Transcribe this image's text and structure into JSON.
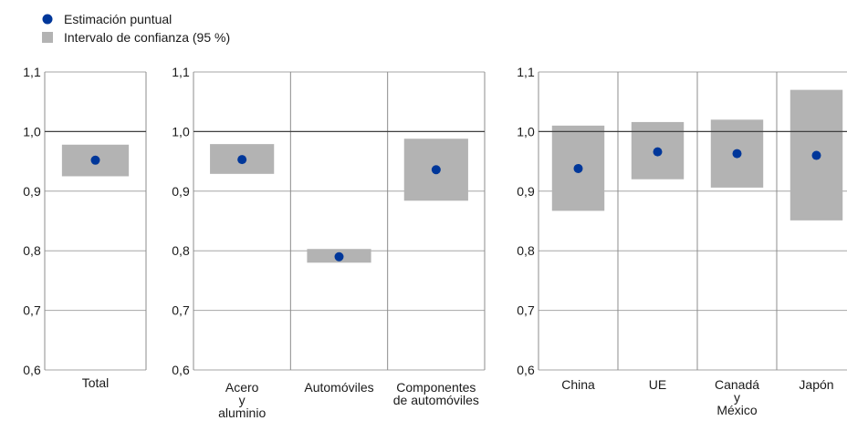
{
  "legend": {
    "point_label": "Estimación puntual",
    "interval_label": "Intervalo de confianza (95 %)"
  },
  "colors": {
    "point": "#00379a",
    "interval": "#b3b3b3",
    "grid": "#a6a6a6",
    "reference_line": "#404040",
    "frame": "#8c8c8c"
  },
  "chart_data": [
    {
      "type": "scatter",
      "subtype": "point estimate with confidence interval",
      "title": "",
      "xlabel": "",
      "ylabel": "",
      "ylim": [
        0.6,
        1.1
      ],
      "yticks": [
        "0,6",
        "0,7",
        "0,8",
        "0,9",
        "1,0",
        "1,1"
      ],
      "reference_line": 1.0,
      "grid": true,
      "categories": [
        [
          "Total"
        ]
      ],
      "point_estimate": [
        0.952
      ],
      "ci_lower": [
        0.925
      ],
      "ci_upper": [
        0.978
      ]
    },
    {
      "type": "scatter",
      "subtype": "point estimate with confidence interval",
      "title": "",
      "xlabel": "",
      "ylabel": "",
      "ylim": [
        0.6,
        1.1
      ],
      "yticks": [
        "0,6",
        "0,7",
        "0,8",
        "0,9",
        "1,0",
        "1,1"
      ],
      "reference_line": 1.0,
      "grid": true,
      "categories": [
        [
          "Acero",
          "y",
          "aluminio"
        ],
        [
          "Automóviles"
        ],
        [
          "Componentes",
          "de automóviles"
        ]
      ],
      "point_estimate": [
        0.953,
        0.79,
        0.936
      ],
      "ci_lower": [
        0.929,
        0.78,
        0.884
      ],
      "ci_upper": [
        0.979,
        0.803,
        0.988
      ]
    },
    {
      "type": "scatter",
      "subtype": "point estimate with confidence interval",
      "title": "",
      "xlabel": "",
      "ylabel": "",
      "ylim": [
        0.6,
        1.1
      ],
      "yticks": [
        "0,6",
        "0,7",
        "0,8",
        "0,9",
        "1,0",
        "1,1"
      ],
      "reference_line": 1.0,
      "grid": true,
      "categories": [
        [
          "China"
        ],
        [
          "UE"
        ],
        [
          "Canadá",
          "y",
          "México"
        ],
        [
          "Japón"
        ]
      ],
      "point_estimate": [
        0.938,
        0.966,
        0.963,
        0.96
      ],
      "ci_lower": [
        0.867,
        0.92,
        0.906,
        0.851
      ],
      "ci_upper": [
        1.01,
        1.016,
        1.02,
        1.07
      ]
    }
  ]
}
